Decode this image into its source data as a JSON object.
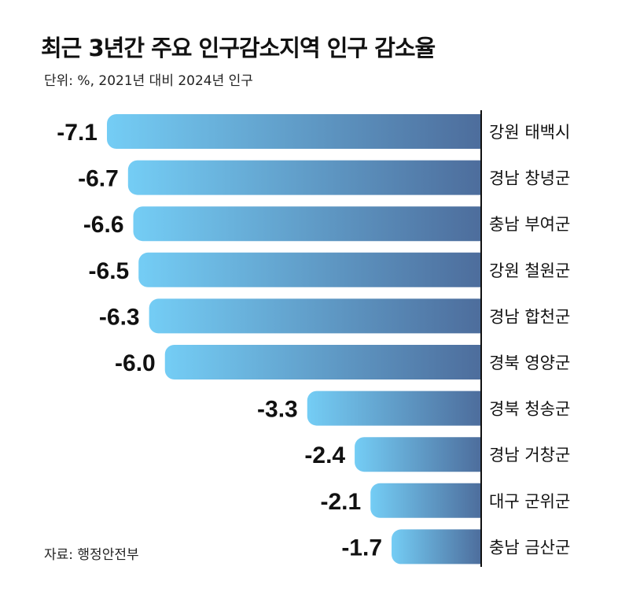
{
  "header": {
    "title": "최근 3년간 주요 인구감소지역 인구 감소율",
    "subtitle": "단위: %, 2021년 대비 2024년 인구"
  },
  "footer": {
    "source": "자료: 행정안전부"
  },
  "colors": {
    "bar_start": "#74cdf5",
    "bar_end": "#4d6d9c",
    "divider": "#111111"
  },
  "chart_data": {
    "type": "bar",
    "orientation": "horizontal",
    "categories": [
      "강원 태백시",
      "경남 창녕군",
      "충남 부여군",
      "강원 철원군",
      "경남 합천군",
      "경북 영양군",
      "경북 청송군",
      "경남 거창군",
      "대구 군위군",
      "충남 금산군"
    ],
    "values": [
      -7.1,
      -6.7,
      -6.6,
      -6.5,
      -6.3,
      -6.0,
      -3.3,
      -2.4,
      -2.1,
      -1.7
    ],
    "value_labels": [
      "-7.1",
      "-6.7",
      "-6.6",
      "-6.5",
      "-6.3",
      "-6.0",
      "-3.3",
      "-2.4",
      "-2.1",
      "-1.7"
    ],
    "title": "최근 3년간 주요 인구감소지역 인구 감소율",
    "xlabel": "",
    "ylabel": "",
    "xlim": [
      -7.1,
      0
    ],
    "grid": false,
    "legend": "none"
  }
}
